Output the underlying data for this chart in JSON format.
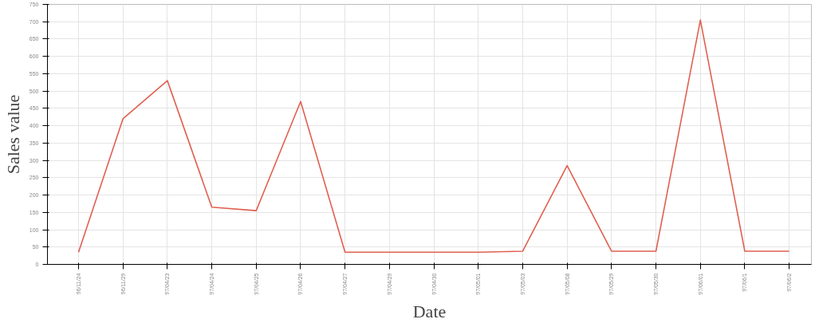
{
  "chart_data": {
    "type": "line",
    "xlabel": "Date",
    "ylabel": "Sales value",
    "categories": [
      "96/11/24",
      "96/11/29",
      "97/04/23",
      "97/04/24",
      "97/04/25",
      "97/04/26",
      "97/04/27",
      "97/04/29",
      "97/04/30",
      "97/05/01",
      "97/05/03",
      "97/05/08",
      "97/05/29",
      "97/05/30",
      "97/06/01",
      "97/06/1",
      "97/06/2"
    ],
    "series": [
      {
        "color": "#e06050",
        "values": [
          35,
          420,
          530,
          165,
          155,
          470,
          35,
          35,
          35,
          35,
          38,
          285,
          38,
          38,
          705,
          38,
          38
        ]
      }
    ],
    "ylim": [
      0,
      750
    ],
    "yticks": [
      0,
      50,
      100,
      150,
      200,
      250,
      300,
      350,
      400,
      450,
      500,
      550,
      600,
      650,
      700,
      750
    ],
    "grid": true,
    "marker": "none",
    "line_style": "solid"
  }
}
